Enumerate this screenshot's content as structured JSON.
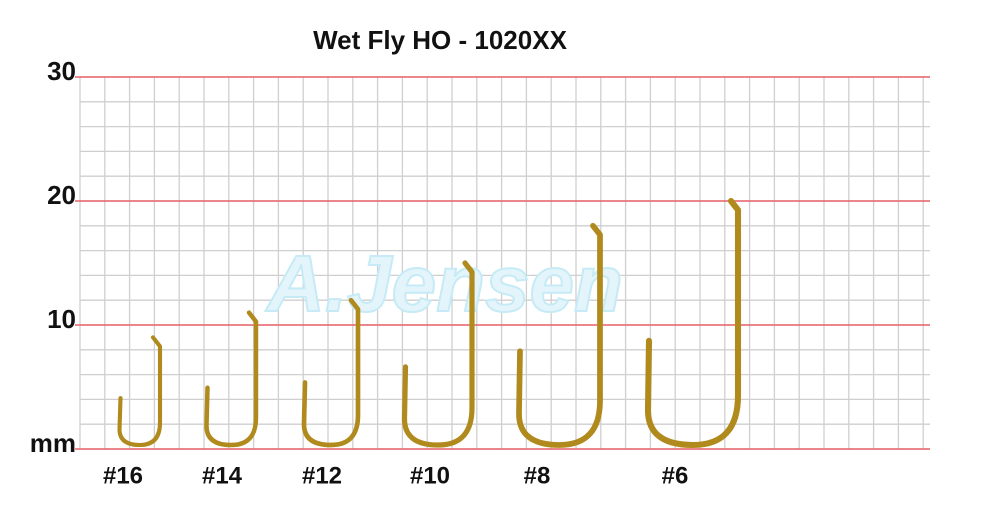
{
  "chart_data": {
    "type": "hook",
    "title": "Wet Fly HO - 1020XX",
    "watermark": "A.Jensen",
    "categories": [
      "#16",
      "#14",
      "#12",
      "#10",
      "#8",
      "#6"
    ],
    "values": [
      9,
      11,
      12,
      15,
      18,
      20
    ],
    "color": "#b08a1c",
    "ylim": [
      0,
      30
    ],
    "yticks": [
      {
        "value": 0,
        "label": "mm"
      },
      10,
      20,
      30
    ],
    "minor_step": 2,
    "grid": true
  }
}
